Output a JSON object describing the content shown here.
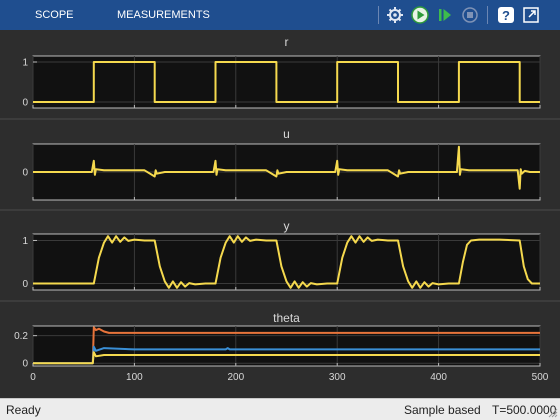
{
  "toolstrip": {
    "tabs": [
      {
        "label": "SCOPE",
        "active": true
      },
      {
        "label": "MEASUREMENTS",
        "active": false
      }
    ],
    "buttons": [
      {
        "icon": "settings-icon"
      },
      {
        "icon": "run-icon"
      },
      {
        "icon": "step-forward-icon"
      },
      {
        "icon": "stop-icon"
      },
      {
        "icon": "help-icon"
      },
      {
        "icon": "undock-icon"
      }
    ],
    "accent_color": "#1f4e8f"
  },
  "plots": [
    {
      "title": "r",
      "yticks": [
        "1",
        "0"
      ]
    },
    {
      "title": "u",
      "yticks": [
        "0"
      ]
    },
    {
      "title": "y",
      "yticks": [
        "1",
        "0"
      ]
    },
    {
      "title": "theta",
      "yticks": [
        "0.2",
        "0"
      ]
    }
  ],
  "xticks": [
    "0",
    "100",
    "200",
    "300",
    "400",
    "500"
  ],
  "status": {
    "ready": "Ready",
    "mode": "Sample based",
    "time": "T=500.0000"
  },
  "chart_data": [
    {
      "type": "line",
      "title": "r",
      "xlim": [
        0,
        500
      ],
      "ylim": [
        -0.15,
        1.15
      ],
      "series": [
        {
          "color": "#f5d94e",
          "x": [
            0,
            60,
            60,
            120,
            120,
            180,
            180,
            240,
            240,
            300,
            300,
            360,
            360,
            420,
            420,
            480,
            480,
            500
          ],
          "y": [
            0,
            0,
            1,
            1,
            0,
            0,
            1,
            1,
            0,
            0,
            1,
            1,
            0,
            0,
            1,
            1,
            0,
            0
          ]
        }
      ]
    },
    {
      "type": "line",
      "title": "u",
      "xlim": [
        0,
        500
      ],
      "ylim": [
        -0.5,
        0.5
      ],
      "series": [
        {
          "color": "#f5d94e",
          "x": [
            0,
            58,
            60,
            61,
            62,
            70,
            110,
            120,
            121,
            122,
            130,
            178,
            180,
            181,
            182,
            190,
            230,
            240,
            241,
            242,
            250,
            298,
            300,
            301,
            302,
            310,
            350,
            360,
            361,
            362,
            370,
            418,
            420,
            421,
            422,
            430,
            478,
            480,
            481,
            482,
            485,
            490,
            500
          ],
          "y": [
            0,
            0,
            0.2,
            -0.05,
            0.05,
            0.03,
            0.03,
            -0.08,
            0.03,
            -0.03,
            0,
            0,
            0.2,
            -0.05,
            0.05,
            0.03,
            0.03,
            -0.08,
            0.03,
            -0.03,
            0,
            0,
            0.2,
            -0.05,
            0.05,
            0.03,
            0.03,
            -0.08,
            0.03,
            -0.03,
            0,
            0,
            0.45,
            -0.05,
            0.05,
            0.03,
            0.03,
            -0.3,
            0.05,
            -0.03,
            0.02,
            0,
            0
          ]
        }
      ]
    },
    {
      "type": "line",
      "title": "y",
      "xlim": [
        0,
        500
      ],
      "ylim": [
        -0.15,
        1.15
      ],
      "series": [
        {
          "color": "#f5d94e",
          "x": [
            0,
            60,
            65,
            70,
            74,
            78,
            82,
            86,
            90,
            94,
            100,
            110,
            120,
            125,
            130,
            134,
            138,
            142,
            146,
            150,
            154,
            160,
            170,
            180,
            185,
            190,
            194,
            198,
            202,
            206,
            210,
            214,
            220,
            230,
            240,
            245,
            250,
            254,
            258,
            262,
            266,
            270,
            274,
            280,
            290,
            300,
            305,
            310,
            314,
            318,
            322,
            326,
            330,
            334,
            340,
            350,
            360,
            365,
            370,
            374,
            378,
            382,
            386,
            390,
            394,
            400,
            410,
            420,
            424,
            428,
            432,
            440,
            460,
            480,
            484,
            488,
            492,
            500
          ],
          "y": [
            0,
            0,
            0.6,
            0.95,
            1.1,
            0.95,
            1.1,
            0.97,
            1.07,
            0.99,
            1.02,
            1.0,
            1.0,
            0.4,
            0.05,
            -0.1,
            0.05,
            -0.1,
            0.03,
            -0.07,
            0.01,
            -0.02,
            0,
            0,
            0.6,
            0.95,
            1.1,
            0.95,
            1.1,
            0.97,
            1.07,
            0.99,
            1.02,
            1.0,
            1.0,
            0.4,
            0.05,
            -0.1,
            0.05,
            -0.1,
            0.03,
            -0.07,
            0.01,
            -0.02,
            0,
            0,
            0.6,
            0.95,
            1.1,
            0.95,
            1.1,
            0.97,
            1.07,
            0.99,
            1.02,
            1.0,
            1.0,
            0.4,
            0.05,
            -0.1,
            0.05,
            -0.1,
            0.03,
            -0.07,
            0.01,
            -0.02,
            0,
            0,
            0.5,
            0.9,
            1.0,
            1.02,
            1.02,
            1.0,
            0.4,
            0.1,
            0.0,
            0
          ]
        }
      ]
    },
    {
      "type": "line",
      "title": "theta",
      "xlim": [
        0,
        500
      ],
      "ylim": [
        -0.02,
        0.27
      ],
      "series": [
        {
          "color": "#e8743b",
          "x": [
            0,
            59,
            60,
            62,
            65,
            70,
            75,
            80,
            100,
            500
          ],
          "y": [
            0,
            0,
            0.26,
            0.24,
            0.25,
            0.23,
            0.22,
            0.22,
            0.22,
            0.22
          ]
        },
        {
          "color": "#3a8fd6",
          "x": [
            0,
            59,
            60,
            62,
            70,
            100,
            190,
            192,
            194,
            500
          ],
          "y": [
            0,
            0,
            0.12,
            0.09,
            0.11,
            0.1,
            0.1,
            0.11,
            0.1,
            0.1
          ]
        },
        {
          "color": "#f5d94e",
          "x": [
            0,
            59,
            60,
            62,
            70,
            100,
            500
          ],
          "y": [
            0,
            0,
            0.08,
            0.05,
            0.06,
            0.06,
            0.06
          ]
        }
      ]
    }
  ]
}
